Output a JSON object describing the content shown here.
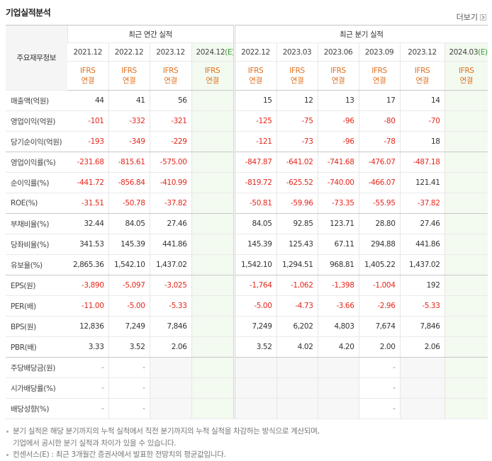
{
  "header": {
    "title": "기업실적분석",
    "more": "더보기"
  },
  "table": {
    "corner": "주요재무정보",
    "groups": [
      {
        "label": "최근 연간 실적",
        "span": 4
      },
      {
        "label": "최근 분기 실적",
        "span": 6
      }
    ],
    "periods": [
      {
        "date": "2021.12"
      },
      {
        "date": "2022.12"
      },
      {
        "date": "2023.12"
      },
      {
        "date": "2024.12",
        "mark": "(E)"
      },
      {
        "date": "2022.12"
      },
      {
        "date": "2023.03"
      },
      {
        "date": "2023.06"
      },
      {
        "date": "2023.09"
      },
      {
        "date": "2023.12"
      },
      {
        "date": "2024.03",
        "mark": "(E)"
      }
    ],
    "accounting": [
      {
        "standard": "IFRS",
        "scope": "연결"
      },
      {
        "standard": "IFRS",
        "scope": "연결"
      },
      {
        "standard": "IFRS",
        "scope": "연결"
      },
      {
        "standard": "IFRS",
        "scope": "연결"
      },
      {
        "standard": "IFRS",
        "scope": "연결"
      },
      {
        "standard": "IFRS",
        "scope": "연결"
      },
      {
        "standard": "IFRS",
        "scope": "연결"
      },
      {
        "standard": "IFRS",
        "scope": "연결"
      },
      {
        "standard": "IFRS",
        "scope": "연결"
      },
      {
        "standard": "IFRS",
        "scope": "연결"
      }
    ],
    "rows": [
      {
        "label": "매출액(억원)",
        "values": [
          "44",
          "41",
          "56",
          null,
          "15",
          "12",
          "13",
          "17",
          "14",
          null
        ]
      },
      {
        "label": "영업이익(억원)",
        "values": [
          "-101",
          "-332",
          "-321",
          null,
          "-125",
          "-75",
          "-96",
          "-80",
          "-70",
          null
        ]
      },
      {
        "label": "당기순이익(억원)",
        "values": [
          "-193",
          "-349",
          "-229",
          null,
          "-121",
          "-73",
          "-96",
          "-78",
          "18",
          null
        ]
      },
      {
        "label": "영업이익률(%)",
        "values": [
          "-231.68",
          "-815.61",
          "-575.00",
          null,
          "-847.87",
          "-641.02",
          "-741.68",
          "-476.07",
          "-487.18",
          null
        ]
      },
      {
        "label": "순이익률(%)",
        "values": [
          "-441.72",
          "-856.84",
          "-410.99",
          null,
          "-819.72",
          "-625.52",
          "-740.00",
          "-466.07",
          "121.41",
          null
        ]
      },
      {
        "label": "ROE(%)",
        "values": [
          "-31.51",
          "-50.78",
          "-37.82",
          null,
          "-50.81",
          "-59.96",
          "-73.35",
          "-55.95",
          "-37.82",
          null
        ]
      },
      {
        "label": "부채비율(%)",
        "values": [
          "32.44",
          "84.05",
          "27.46",
          null,
          "84.05",
          "92.85",
          "123.71",
          "28.80",
          "27.46",
          null
        ]
      },
      {
        "label": "당좌비율(%)",
        "values": [
          "341.53",
          "145.39",
          "441.86",
          null,
          "145.39",
          "125.43",
          "67.11",
          "294.88",
          "441.86",
          null
        ]
      },
      {
        "label": "유보율(%)",
        "values": [
          "2,865.36",
          "1,542.10",
          "1,437.02",
          null,
          "1,542.10",
          "1,294.51",
          "968.81",
          "1,405.22",
          "1,437.02",
          null
        ]
      },
      {
        "label": "EPS(원)",
        "values": [
          "-3,890",
          "-5,097",
          "-3,025",
          null,
          "-1,764",
          "-1,062",
          "-1,398",
          "-1,004",
          "192",
          null
        ]
      },
      {
        "label": "PER(배)",
        "values": [
          "-11.00",
          "-5.00",
          "-5.33",
          null,
          "-5.00",
          "-4.73",
          "-3.66",
          "-2.96",
          "-5.33",
          null
        ]
      },
      {
        "label": "BPS(원)",
        "values": [
          "12,836",
          "7,249",
          "7,846",
          null,
          "7,249",
          "6,202",
          "4,803",
          "7,674",
          "7,846",
          null
        ]
      },
      {
        "label": "PBR(배)",
        "values": [
          "3.33",
          "3.52",
          "2.06",
          null,
          "3.52",
          "4.02",
          "4.20",
          "2.00",
          "2.06",
          null
        ]
      },
      {
        "label": "주당배당금(원)",
        "values": [
          "-",
          "-",
          null,
          null,
          null,
          null,
          null,
          "-",
          null,
          null
        ]
      },
      {
        "label": "시가배당률(%)",
        "values": [
          "-",
          "-",
          null,
          null,
          null,
          null,
          null,
          "-",
          null,
          null
        ]
      },
      {
        "label": "배당성향(%)",
        "values": [
          "-",
          "-",
          null,
          null,
          null,
          null,
          null,
          "-",
          null,
          null
        ]
      }
    ]
  },
  "notes": [
    {
      "lines": [
        "분기 실적은 해당 분기까지의 누적 실적에서 직전 분기까지의 누적 실적을 차감하는 방식으로 계산되며,",
        "기업에서 공시한 분기 실적과 차이가 있을 수 있습니다."
      ]
    },
    {
      "lines": [
        "컨센서스(E) : 최근 3개월간 증권사에서 발표한 전망치의 평균값입니다."
      ]
    }
  ]
}
